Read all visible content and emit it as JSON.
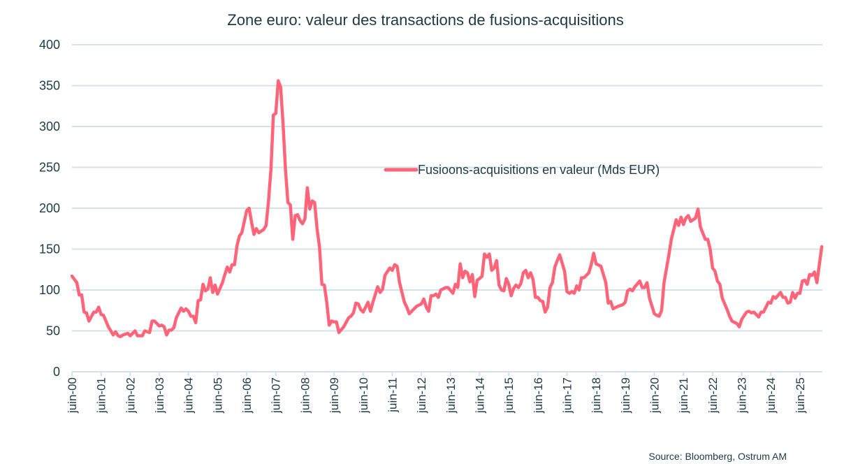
{
  "chart_data": {
    "type": "line",
    "title": "Zone euro: valeur des transactions de fusions-acquisitions",
    "xlabel": "",
    "ylabel": "",
    "ylim": [
      0,
      400
    ],
    "yticks": [
      0,
      50,
      100,
      150,
      200,
      250,
      300,
      350,
      400
    ],
    "xtick_labels": [
      "juin-00",
      "juin-01",
      "juin-02",
      "juin-03",
      "juin-04",
      "juin-05",
      "juin-06",
      "juin-07",
      "juin-08",
      "juin-09",
      "juin-10",
      "juin-11",
      "juin-12",
      "juin-13",
      "juin-14",
      "juin-15",
      "juin-16",
      "juin-17",
      "juin-18",
      "juin-19",
      "juin-20",
      "juin-21",
      "juin-22",
      "juin-23",
      "juin-24",
      "juin-25"
    ],
    "grid": "horizontal",
    "legend_position": "center-right",
    "series": [
      {
        "name": "Fusioons-acquisitions en valeur (Mds EUR)",
        "color": "#ff6479",
        "points": [
          [
            "2000-06",
            117
          ],
          [
            "2000-08",
            109
          ],
          [
            "2000-09",
            94
          ],
          [
            "2000-10",
            94
          ],
          [
            "2000-11",
            73
          ],
          [
            "2000-12",
            72
          ],
          [
            "2001-01",
            62
          ],
          [
            "2001-03",
            73
          ],
          [
            "2001-04",
            73
          ],
          [
            "2001-05",
            79
          ],
          [
            "2001-06",
            70
          ],
          [
            "2001-07",
            69
          ],
          [
            "2001-09",
            55
          ],
          [
            "2001-11",
            45
          ],
          [
            "2001-12",
            49
          ],
          [
            "2002-01",
            44
          ],
          [
            "2002-02",
            43
          ],
          [
            "2002-03",
            45
          ],
          [
            "2002-05",
            47
          ],
          [
            "2002-06",
            44
          ],
          [
            "2002-08",
            50
          ],
          [
            "2002-09",
            44
          ],
          [
            "2002-11",
            44
          ],
          [
            "2002-12",
            50
          ],
          [
            "2003-02",
            48
          ],
          [
            "2003-03",
            62
          ],
          [
            "2003-04",
            62
          ],
          [
            "2003-06",
            56
          ],
          [
            "2003-07",
            57
          ],
          [
            "2003-08",
            55
          ],
          [
            "2003-09",
            45
          ],
          [
            "2003-10",
            51
          ],
          [
            "2003-11",
            51
          ],
          [
            "2003-12",
            54
          ],
          [
            "2004-01",
            66
          ],
          [
            "2004-03",
            78
          ],
          [
            "2004-04",
            74
          ],
          [
            "2004-05",
            77
          ],
          [
            "2004-06",
            74
          ],
          [
            "2004-07",
            68
          ],
          [
            "2004-08",
            68
          ],
          [
            "2004-09",
            60
          ],
          [
            "2004-10",
            87
          ],
          [
            "2004-11",
            88
          ],
          [
            "2004-12",
            107
          ],
          [
            "2005-01",
            99
          ],
          [
            "2005-02",
            101
          ],
          [
            "2005-03",
            115
          ],
          [
            "2005-04",
            97
          ],
          [
            "2005-05",
            106
          ],
          [
            "2005-06",
            95
          ],
          [
            "2005-08",
            109
          ],
          [
            "2005-09",
            119
          ],
          [
            "2005-10",
            128
          ],
          [
            "2005-11",
            122
          ],
          [
            "2005-12",
            131
          ],
          [
            "2006-01",
            131
          ],
          [
            "2006-02",
            154
          ],
          [
            "2006-03",
            166
          ],
          [
            "2006-04",
            170
          ],
          [
            "2006-06",
            197
          ],
          [
            "2006-07",
            200
          ],
          [
            "2006-08",
            183
          ],
          [
            "2006-09",
            168
          ],
          [
            "2006-10",
            175
          ],
          [
            "2006-11",
            170
          ],
          [
            "2007-01",
            174
          ],
          [
            "2007-02",
            179
          ],
          [
            "2007-03",
            209
          ],
          [
            "2007-04",
            247
          ],
          [
            "2007-05",
            314
          ],
          [
            "2007-06",
            316
          ],
          [
            "2007-07",
            356
          ],
          [
            "2007-08",
            348
          ],
          [
            "2007-09",
            303
          ],
          [
            "2007-10",
            247
          ],
          [
            "2007-11",
            207
          ],
          [
            "2007-12",
            204
          ],
          [
            "2008-01",
            162
          ],
          [
            "2008-02",
            191
          ],
          [
            "2008-03",
            192
          ],
          [
            "2008-04",
            185
          ],
          [
            "2008-05",
            181
          ],
          [
            "2008-06",
            187
          ],
          [
            "2008-07",
            225
          ],
          [
            "2008-08",
            199
          ],
          [
            "2008-09",
            209
          ],
          [
            "2008-10",
            207
          ],
          [
            "2008-11",
            175
          ],
          [
            "2008-12",
            153
          ],
          [
            "2009-01",
            107
          ],
          [
            "2009-02",
            106
          ],
          [
            "2009-03",
            85
          ],
          [
            "2009-04",
            57
          ],
          [
            "2009-05",
            62
          ],
          [
            "2009-06",
            61
          ],
          [
            "2009-07",
            61
          ],
          [
            "2009-08",
            48
          ],
          [
            "2009-10",
            55
          ],
          [
            "2009-12",
            66
          ],
          [
            "2010-01",
            68
          ],
          [
            "2010-02",
            72
          ],
          [
            "2010-03",
            84
          ],
          [
            "2010-04",
            83
          ],
          [
            "2010-05",
            76
          ],
          [
            "2010-06",
            73
          ],
          [
            "2010-07",
            79
          ],
          [
            "2010-08",
            85
          ],
          [
            "2010-09",
            74
          ],
          [
            "2010-10",
            85
          ],
          [
            "2010-12",
            104
          ],
          [
            "2011-01",
            97
          ],
          [
            "2011-02",
            101
          ],
          [
            "2011-03",
            118
          ],
          [
            "2011-05",
            127
          ],
          [
            "2011-06",
            124
          ],
          [
            "2011-07",
            131
          ],
          [
            "2011-08",
            129
          ],
          [
            "2011-09",
            109
          ],
          [
            "2011-11",
            85
          ],
          [
            "2011-12",
            79
          ],
          [
            "2012-01",
            71
          ],
          [
            "2012-02",
            74
          ],
          [
            "2012-04",
            80
          ],
          [
            "2012-06",
            83
          ],
          [
            "2012-07",
            89
          ],
          [
            "2012-08",
            79
          ],
          [
            "2012-09",
            74
          ],
          [
            "2012-10",
            93
          ],
          [
            "2012-11",
            93
          ],
          [
            "2012-12",
            95
          ],
          [
            "2013-01",
            91
          ],
          [
            "2013-02",
            100
          ],
          [
            "2013-04",
            103
          ],
          [
            "2013-05",
            103
          ],
          [
            "2013-07",
            96
          ],
          [
            "2013-08",
            107
          ],
          [
            "2013-09",
            103
          ],
          [
            "2013-10",
            132
          ],
          [
            "2013-11",
            115
          ],
          [
            "2013-12",
            123
          ],
          [
            "2014-01",
            121
          ],
          [
            "2014-02",
            110
          ],
          [
            "2014-03",
            119
          ],
          [
            "2014-04",
            92
          ],
          [
            "2014-05",
            112
          ],
          [
            "2014-06",
            114
          ],
          [
            "2014-07",
            117
          ],
          [
            "2014-08",
            144
          ],
          [
            "2014-09",
            140
          ],
          [
            "2014-10",
            144
          ],
          [
            "2014-11",
            124
          ],
          [
            "2014-12",
            127
          ],
          [
            "2015-01",
            136
          ],
          [
            "2015-02",
            106
          ],
          [
            "2015-03",
            100
          ],
          [
            "2015-04",
            99
          ],
          [
            "2015-05",
            114
          ],
          [
            "2015-06",
            107
          ],
          [
            "2015-07",
            93
          ],
          [
            "2015-08",
            102
          ],
          [
            "2015-09",
            106
          ],
          [
            "2015-10",
            103
          ],
          [
            "2015-11",
            108
          ],
          [
            "2015-12",
            121
          ],
          [
            "2016-01",
            124
          ],
          [
            "2016-02",
            115
          ],
          [
            "2016-03",
            121
          ],
          [
            "2016-04",
            113
          ],
          [
            "2016-05",
            91
          ],
          [
            "2016-06",
            91
          ],
          [
            "2016-07",
            87
          ],
          [
            "2016-08",
            86
          ],
          [
            "2016-09",
            73
          ],
          [
            "2016-10",
            79
          ],
          [
            "2016-11",
            103
          ],
          [
            "2016-12",
            109
          ],
          [
            "2017-01",
            128
          ],
          [
            "2017-02",
            136
          ],
          [
            "2017-03",
            143
          ],
          [
            "2017-05",
            123
          ],
          [
            "2017-06",
            98
          ],
          [
            "2017-07",
            96
          ],
          [
            "2017-08",
            98
          ],
          [
            "2017-09",
            96
          ],
          [
            "2017-10",
            105
          ],
          [
            "2017-11",
            100
          ],
          [
            "2017-12",
            115
          ],
          [
            "2018-01",
            115
          ],
          [
            "2018-03",
            121
          ],
          [
            "2018-04",
            131
          ],
          [
            "2018-05",
            145
          ],
          [
            "2018-06",
            132
          ],
          [
            "2018-08",
            129
          ],
          [
            "2018-10",
            109
          ],
          [
            "2018-11",
            84
          ],
          [
            "2018-12",
            86
          ],
          [
            "2019-01",
            77
          ],
          [
            "2019-03",
            80
          ],
          [
            "2019-05",
            82
          ],
          [
            "2019-06",
            85
          ],
          [
            "2019-07",
            99
          ],
          [
            "2019-08",
            101
          ],
          [
            "2019-09",
            99
          ],
          [
            "2019-10",
            104
          ],
          [
            "2019-12",
            111
          ],
          [
            "2020-01",
            103
          ],
          [
            "2020-02",
            103
          ],
          [
            "2020-03",
            109
          ],
          [
            "2020-04",
            90
          ],
          [
            "2020-06",
            71
          ],
          [
            "2020-07",
            69
          ],
          [
            "2020-08",
            68
          ],
          [
            "2020-09",
            75
          ],
          [
            "2020-10",
            109
          ],
          [
            "2020-12",
            143
          ],
          [
            "2021-01",
            162
          ],
          [
            "2021-03",
            186
          ],
          [
            "2021-04",
            179
          ],
          [
            "2021-05",
            189
          ],
          [
            "2021-06",
            180
          ],
          [
            "2021-07",
            188
          ],
          [
            "2021-08",
            191
          ],
          [
            "2021-09",
            184
          ],
          [
            "2021-11",
            188
          ],
          [
            "2021-12",
            199
          ],
          [
            "2022-01",
            177
          ],
          [
            "2022-03",
            162
          ],
          [
            "2022-04",
            162
          ],
          [
            "2022-05",
            150
          ],
          [
            "2022-06",
            127
          ],
          [
            "2022-07",
            123
          ],
          [
            "2022-08",
            111
          ],
          [
            "2022-09",
            107
          ],
          [
            "2022-10",
            90
          ],
          [
            "2022-12",
            76
          ],
          [
            "2023-01",
            68
          ],
          [
            "2023-02",
            62
          ],
          [
            "2023-04",
            59
          ],
          [
            "2023-05",
            55
          ],
          [
            "2023-06",
            64
          ],
          [
            "2023-08",
            73
          ],
          [
            "2023-09",
            74
          ],
          [
            "2023-10",
            72
          ],
          [
            "2023-11",
            73
          ],
          [
            "2024-01",
            67
          ],
          [
            "2024-02",
            73
          ],
          [
            "2024-03",
            73
          ],
          [
            "2024-05",
            85
          ],
          [
            "2024-06",
            84
          ],
          [
            "2024-07",
            92
          ],
          [
            "2024-08",
            90
          ],
          [
            "2024-10",
            97
          ],
          [
            "2024-11",
            91
          ],
          [
            "2024-12",
            91
          ],
          [
            "2025-01",
            84
          ],
          [
            "2025-02",
            85
          ],
          [
            "2025-03",
            97
          ],
          [
            "2025-04",
            90
          ],
          [
            "2025-05",
            96
          ],
          [
            "2025-06",
            96
          ],
          [
            "2025-07",
            111
          ],
          [
            "2025-08",
            112
          ],
          [
            "2025-09",
            107
          ],
          [
            "2025-10",
            119
          ],
          [
            "2025-11",
            118
          ],
          [
            "2025-12",
            122
          ],
          [
            "2026-01",
            109
          ],
          [
            "2026-03",
            153
          ]
        ]
      }
    ],
    "source": "Source: Bloomberg,  Ostrum  AM"
  },
  "colors": {
    "grid": "#d5e1e8",
    "text": "#1d3a44",
    "line": "#ff6479"
  }
}
